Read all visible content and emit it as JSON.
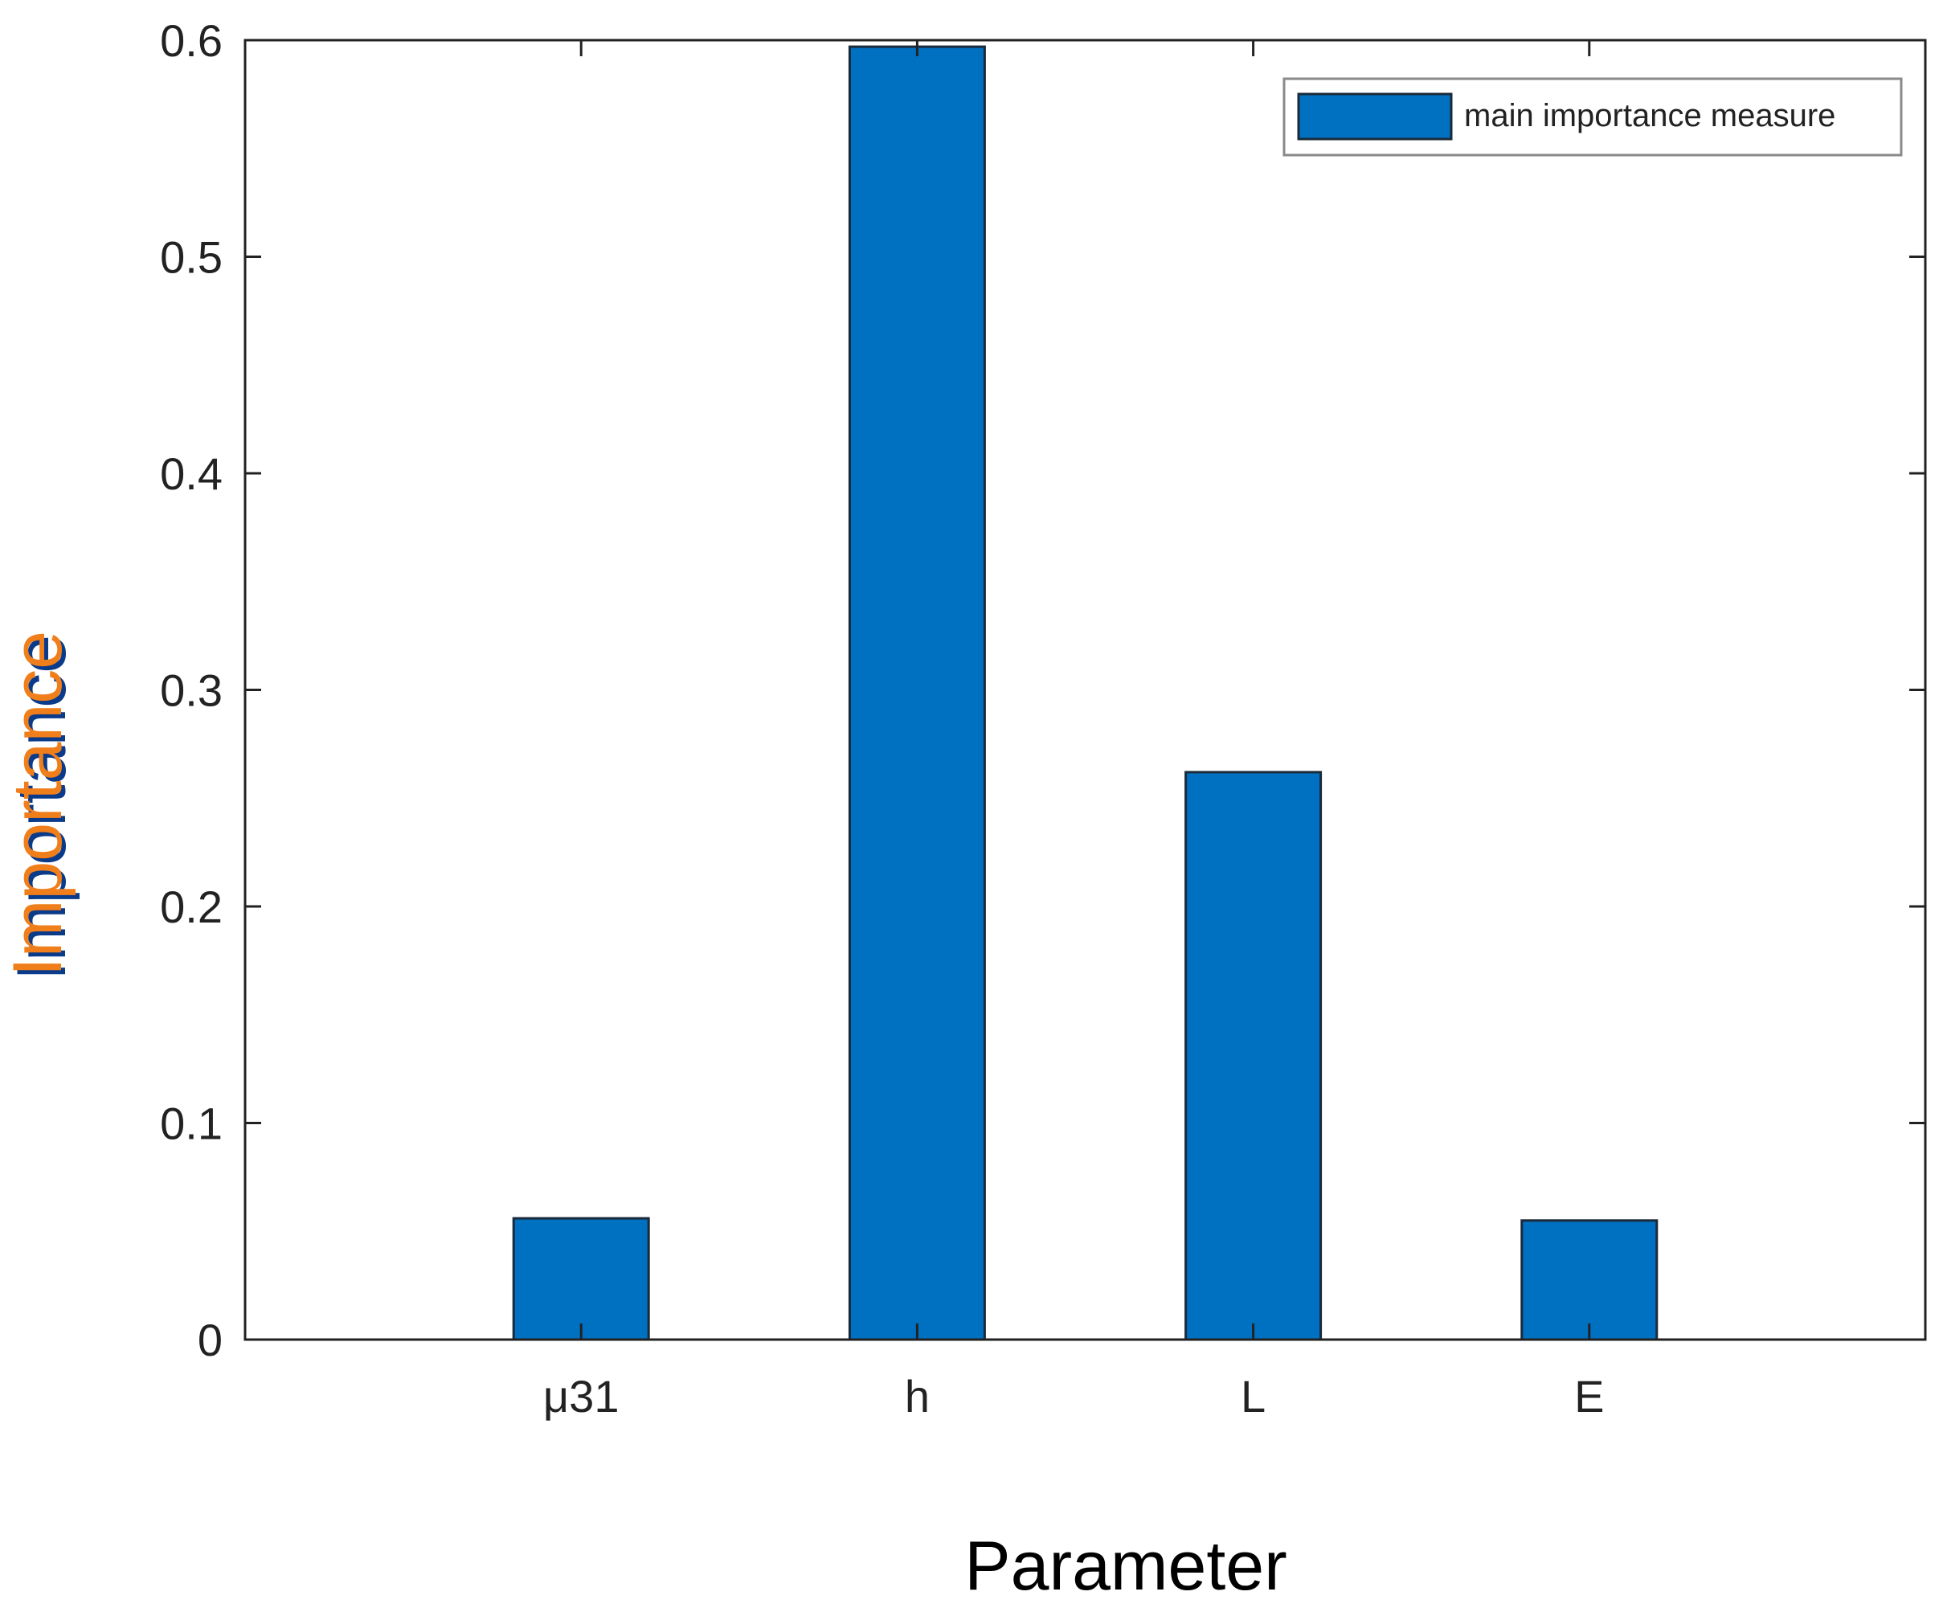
{
  "chart_data": {
    "type": "bar",
    "categories": [
      "μ31",
      "h",
      "L",
      "E"
    ],
    "series": [
      {
        "name": "main importance measure",
        "values": [
          0.056,
          0.597,
          0.262,
          0.055
        ]
      }
    ],
    "xlabel": "Parameter",
    "ylabel": "Importance",
    "ylim": [
      0,
      0.6
    ],
    "yticks": [
      "0",
      "0.1",
      "0.2",
      "0.3",
      "0.4",
      "0.5",
      "0.6"
    ],
    "ytick_values": [
      0,
      0.1,
      0.2,
      0.3,
      0.4,
      0.5,
      0.6
    ],
    "grid": false,
    "legend_position": "top-right",
    "colors": {
      "bar": "#0070c0",
      "bar_edge": "#1a2a3a",
      "axis": "#222222",
      "xlabel": "#000000",
      "ylabel_primary": "#f07e1a",
      "ylabel_shadow": "#0a3a8a"
    }
  }
}
